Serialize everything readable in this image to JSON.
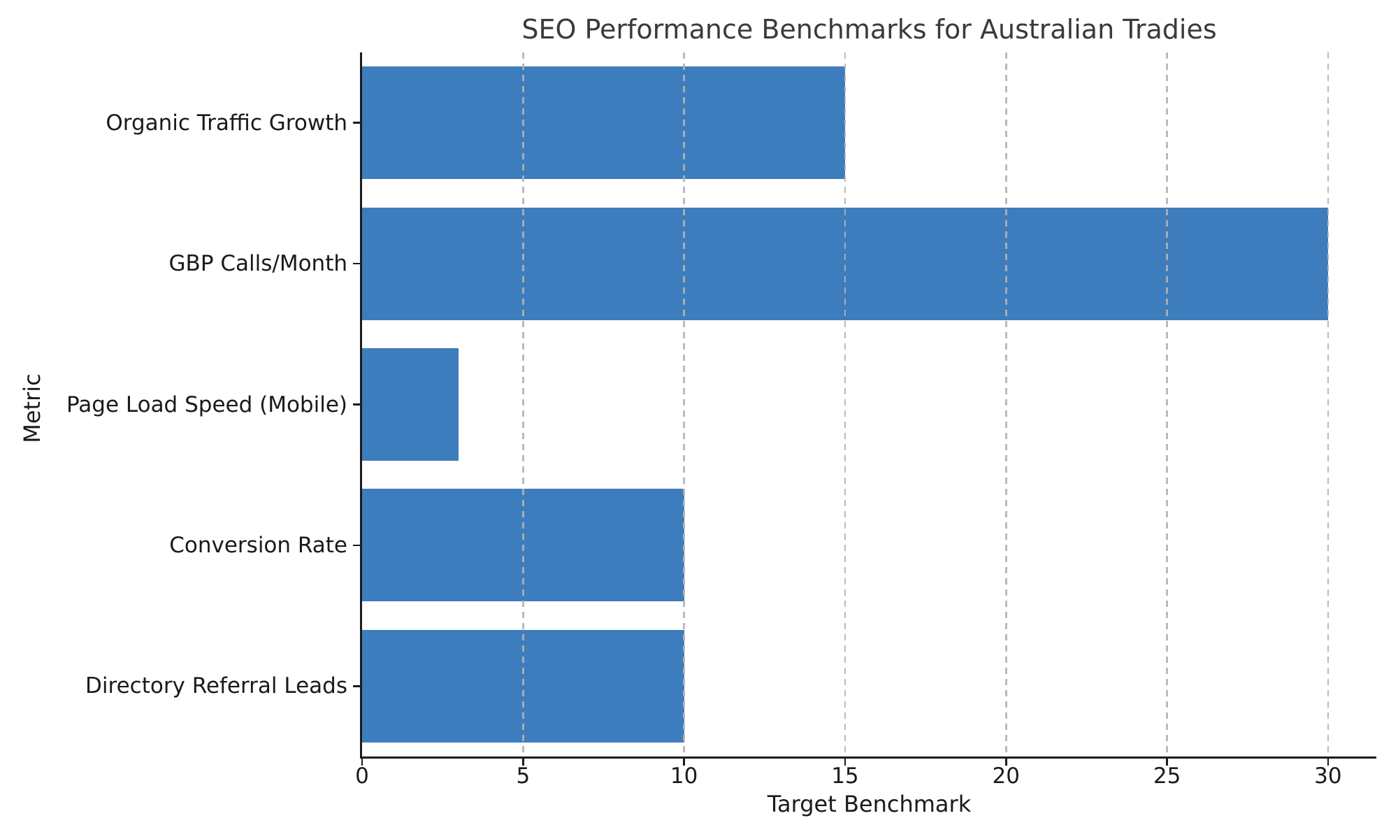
{
  "chart_data": {
    "type": "bar",
    "orientation": "horizontal",
    "title": "SEO Performance Benchmarks for Australian Tradies",
    "xlabel": "Target Benchmark",
    "ylabel": "Metric",
    "categories": [
      "Organic Traffic Growth",
      "GBP Calls/Month",
      "Page Load Speed (Mobile)",
      "Conversion Rate",
      "Directory Referral Leads"
    ],
    "values": [
      15,
      30,
      3,
      10,
      10
    ],
    "xticks": [
      0,
      5,
      10,
      15,
      20,
      25,
      30
    ],
    "xtick_labels": [
      "0",
      "5",
      "10",
      "15",
      "20",
      "25",
      "30"
    ],
    "xlim": [
      0,
      31.5
    ],
    "bar_color": "#3e7dbd",
    "grid": "vertical-dashed",
    "grid_color": "#b2b2b2",
    "spine_color": "#1c1c1c",
    "background_color": "#ffffff",
    "legend": "none"
  }
}
